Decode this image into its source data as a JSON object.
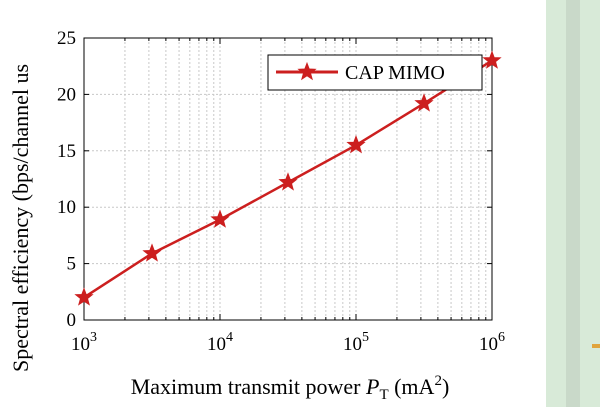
{
  "chart_data": {
    "type": "line",
    "xscale": "log",
    "x": [
      1000,
      3162,
      10000,
      31623,
      100000,
      316228,
      1000000
    ],
    "series": [
      {
        "name": "CAP MIMO",
        "color": "#cc1f1f",
        "marker": "star",
        "values": [
          2.0,
          5.9,
          8.9,
          12.2,
          15.5,
          19.2,
          23.0
        ]
      }
    ],
    "xlim": [
      1000,
      1000000
    ],
    "ylim": [
      0,
      25
    ],
    "yticks": [
      "0",
      "5",
      "10",
      "15",
      "20",
      "25"
    ],
    "xticks": [
      {
        "base": "10",
        "exp": "3"
      },
      {
        "base": "10",
        "exp": "4"
      },
      {
        "base": "10",
        "exp": "5"
      },
      {
        "base": "10",
        "exp": "6"
      }
    ],
    "xlabel": {
      "prefix": "Maximum transmit power ",
      "var": "P",
      "sub": "T",
      "unit": " (mA",
      "sup": "2",
      "close": ")"
    },
    "ylabel": "Spectral efficiency (bps/channel us",
    "grid": true,
    "legend_position": "top-right"
  }
}
